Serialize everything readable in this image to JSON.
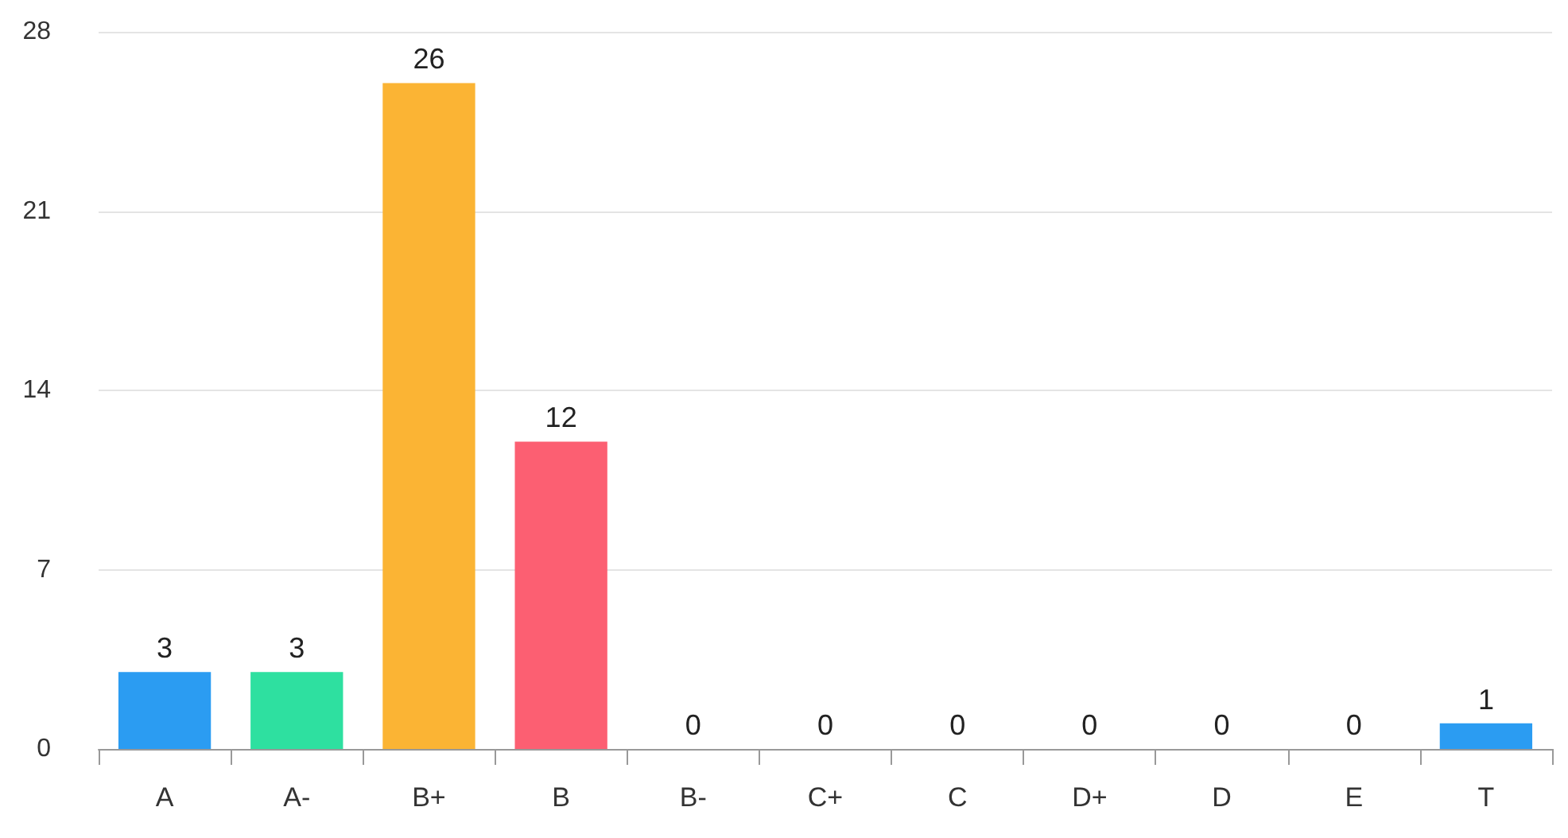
{
  "chart_data": {
    "type": "bar",
    "categories": [
      "A",
      "A-",
      "B+",
      "B",
      "B-",
      "C+",
      "C",
      "D+",
      "D",
      "E",
      "T"
    ],
    "values": [
      3,
      3,
      26,
      12,
      0,
      0,
      0,
      0,
      0,
      0,
      1
    ],
    "colors": [
      "#2b9cf2",
      "#2ee0a0",
      "#fbb434",
      "#fc5f72",
      "#9b6cf0",
      "#2b9cf2",
      "#2ee0a0",
      "#fbb434",
      "#fc5f72",
      "#9b6cf0",
      "#2b9cf2"
    ],
    "ylim": [
      0,
      28
    ],
    "yticks": [
      0,
      7,
      14,
      21,
      28
    ],
    "grid": "y",
    "data_labels": true
  }
}
